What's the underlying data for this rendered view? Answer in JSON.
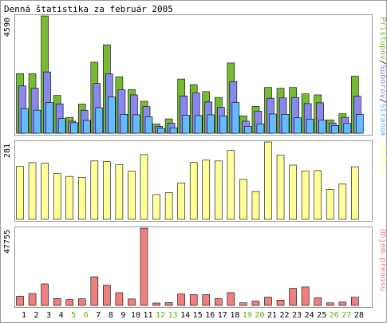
{
  "chart_data": {
    "type": "bar",
    "title": "Denná štatistika za február 2005",
    "categories": [
      "1",
      "2",
      "3",
      "4",
      "5",
      "6",
      "7",
      "8",
      "9",
      "10",
      "11",
      "12",
      "13",
      "14",
      "15",
      "16",
      "17",
      "18",
      "19",
      "20",
      "21",
      "22",
      "23",
      "24",
      "25",
      "26",
      "27",
      "28"
    ],
    "weekend_days": [
      "5",
      "6",
      "12",
      "13",
      "19",
      "20",
      "26",
      "27"
    ],
    "colors": {
      "weekday_label": "#000000",
      "weekend_label": "#66aa11",
      "hits": "#77bb33",
      "files": "#8888ee",
      "pages": "#66bbff",
      "visits": "#ffff99",
      "kbytes": "#f08080",
      "bar_outline": "#000000",
      "panel_border": "#999999"
    },
    "panels": [
      {
        "id": "hits-files-pages",
        "ymax_label": "4590",
        "ylim": [
          0,
          4590
        ],
        "legend": [
          {
            "text": "Prístupov",
            "color": "#77bb33"
          },
          {
            "text": "/",
            "color": "#000000"
          },
          {
            "text": "Súborov",
            "color": "#8888ee"
          },
          {
            "text": "/",
            "color": "#000000"
          },
          {
            "text": "Stránok",
            "color": "#66bbff"
          }
        ],
        "series": [
          {
            "name": "Prístupov",
            "key": "hits",
            "values": [
              2330,
              2330,
              4590,
              1480,
              620,
              1140,
              2780,
              3460,
              2210,
              1710,
              1250,
              360,
              560,
              2120,
              1900,
              1630,
              1400,
              2750,
              680,
              1050,
              1790,
              1760,
              1790,
              1540,
              1500,
              520,
              760,
              2230
            ]
          },
          {
            "name": "Súborov",
            "key": "files",
            "values": [
              1850,
              1760,
              2400,
              1150,
              470,
              900,
              1950,
              2320,
              1700,
              1500,
              1040,
              270,
              390,
              1460,
              1580,
              1220,
              1020,
              2020,
              470,
              860,
              1370,
              1380,
              1400,
              1160,
              1190,
              400,
              620,
              1450
            ]
          },
          {
            "name": "Stránok",
            "key": "pages",
            "values": [
              960,
              900,
              1200,
              570,
              410,
              500,
              1000,
              1420,
              740,
              720,
              640,
              190,
              210,
              700,
              690,
              720,
              680,
              1200,
              270,
              360,
              750,
              740,
              600,
              550,
              510,
              300,
              380,
              740
            ]
          }
        ]
      },
      {
        "id": "visits",
        "ymax_label": "281",
        "ylim": [
          0,
          281
        ],
        "legend": [
          {
            "text": "Návštev",
            "color": "#ffff99"
          }
        ],
        "series": [
          {
            "name": "Návštev",
            "key": "visits",
            "values": [
              192,
              206,
              204,
              166,
              156,
              152,
              212,
              210,
              198,
              175,
              235,
              90,
              97,
              132,
              207,
              215,
              212,
              250,
              145,
              101,
              281,
              233,
              197,
              176,
              177,
              109,
              128,
              191
            ]
          }
        ]
      },
      {
        "id": "kbytes",
        "ymax_label": "47755",
        "ylim": [
          0,
          47755
        ],
        "legend": [
          {
            "text": "Objem prenosu",
            "color": "#f08080"
          }
        ],
        "series": [
          {
            "name": "Objem prenosu",
            "key": "kbytes",
            "values": [
              5700,
              7400,
              13300,
              4300,
              3600,
              4100,
              17700,
              12500,
              7900,
              4000,
              47755,
              1500,
              1800,
              7100,
              6700,
              6700,
              4200,
              7900,
              1600,
              2700,
              5100,
              3300,
              10500,
              11400,
              4700,
              1600,
              2100,
              5100
            ]
          }
        ]
      }
    ]
  }
}
